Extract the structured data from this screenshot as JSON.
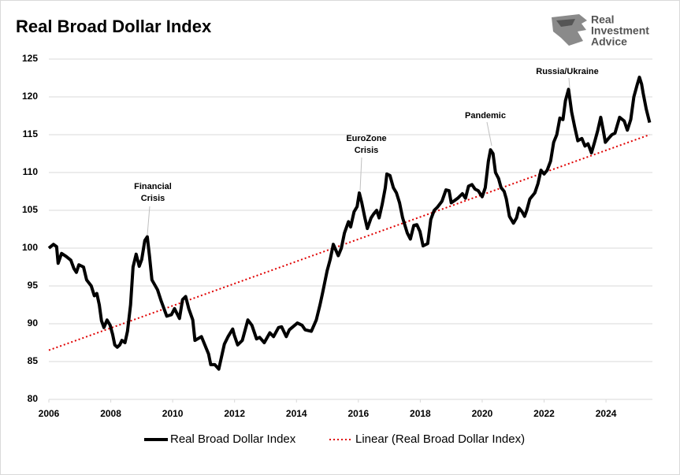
{
  "chart_data": {
    "type": "line",
    "title": "Real Broad Dollar Index",
    "logo": [
      "Real",
      "Investment",
      "Advice"
    ],
    "annotations": [
      {
        "lines": [
          "Financial",
          "Crisis"
        ]
      },
      {
        "lines": [
          "EuroZone",
          "Crisis"
        ]
      },
      {
        "lines": [
          "Pandemic"
        ]
      },
      {
        "lines": [
          "Russia/Ukraine"
        ]
      }
    ],
    "xlim": [
      2006,
      2025.5
    ],
    "xticks": [
      2006,
      2008,
      2010,
      2012,
      2014,
      2016,
      2018,
      2020,
      2022,
      2024
    ],
    "ylim": [
      80,
      125
    ],
    "yticks": [
      80,
      85,
      90,
      95,
      100,
      105,
      110,
      115,
      120,
      125
    ],
    "grid": true,
    "legend": "bottom",
    "series": [
      {
        "name": "Real Broad Dollar Index",
        "color": "#000000",
        "style": "solid",
        "x": [
          2006.0,
          2006.15,
          2006.25,
          2006.3,
          2006.41,
          2006.56,
          2006.71,
          2006.81,
          2006.89,
          2006.97,
          2007.12,
          2007.22,
          2007.37,
          2007.47,
          2007.55,
          2007.63,
          2007.7,
          2007.78,
          2007.88,
          2007.98,
          2008.06,
          2008.13,
          2008.21,
          2008.29,
          2008.36,
          2008.46,
          2008.54,
          2008.64,
          2008.72,
          2008.82,
          2008.92,
          2009.0,
          2009.1,
          2009.18,
          2009.25,
          2009.33,
          2009.51,
          2009.63,
          2009.81,
          2009.96,
          2010.06,
          2010.22,
          2010.32,
          2010.42,
          2010.52,
          2010.65,
          2010.72,
          2010.93,
          2011.08,
          2011.16,
          2011.23,
          2011.36,
          2011.49,
          2011.67,
          2011.79,
          2011.94,
          2011.99,
          2012.1,
          2012.25,
          2012.43,
          2012.56,
          2012.71,
          2012.81,
          2012.96,
          2013.14,
          2013.26,
          2013.42,
          2013.52,
          2013.67,
          2013.77,
          2014.03,
          2014.18,
          2014.28,
          2014.48,
          2014.64,
          2014.76,
          2014.84,
          2014.99,
          2015.09,
          2015.19,
          2015.35,
          2015.45,
          2015.55,
          2015.68,
          2015.75,
          2015.86,
          2015.96,
          2016.03,
          2016.11,
          2016.21,
          2016.29,
          2016.41,
          2016.49,
          2016.59,
          2016.67,
          2016.77,
          2016.87,
          2016.92,
          2017.02,
          2017.13,
          2017.23,
          2017.33,
          2017.43,
          2017.58,
          2017.68,
          2017.79,
          2017.89,
          2017.99,
          2018.09,
          2018.24,
          2018.34,
          2018.45,
          2018.55,
          2018.7,
          2018.83,
          2018.93,
          2019.0,
          2019.11,
          2019.21,
          2019.36,
          2019.46,
          2019.56,
          2019.67,
          2019.77,
          2019.87,
          2020.0,
          2020.1,
          2020.2,
          2020.27,
          2020.35,
          2020.43,
          2020.53,
          2020.61,
          2020.71,
          2020.78,
          2020.88,
          2021.01,
          2021.11,
          2021.19,
          2021.29,
          2021.37,
          2021.44,
          2021.54,
          2021.7,
          2021.8,
          2021.9,
          2022.0,
          2022.1,
          2022.21,
          2022.31,
          2022.41,
          2022.51,
          2022.61,
          2022.69,
          2022.79,
          2022.89,
          2022.99,
          2023.09,
          2023.22,
          2023.32,
          2023.42,
          2023.53,
          2023.63,
          2023.73,
          2023.83,
          2023.91,
          2023.98,
          2024.08,
          2024.19,
          2024.29,
          2024.44,
          2024.59,
          2024.69,
          2024.8,
          2024.9,
          2025.0,
          2025.08,
          2025.15,
          2025.2,
          2025.3,
          2025.41
        ],
        "values": [
          100,
          100.5,
          100.2,
          98,
          99.3,
          98.9,
          98.4,
          97.3,
          96.8,
          97.8,
          97.5,
          95.8,
          95,
          93.7,
          94,
          92.5,
          90.4,
          89.5,
          90.5,
          89.8,
          88.6,
          87.2,
          86.9,
          87.2,
          87.8,
          87.5,
          89,
          92.5,
          97.5,
          99.2,
          97.6,
          98.5,
          101,
          101.5,
          99,
          95.8,
          94.5,
          93,
          91,
          91.2,
          92,
          90.7,
          93.2,
          93.6,
          92,
          90.5,
          87.8,
          88.3,
          86.8,
          86,
          84.6,
          84.6,
          84,
          87.3,
          88.3,
          89.3,
          88.5,
          87.2,
          87.8,
          90.5,
          89.8,
          88,
          88.2,
          87.5,
          88.8,
          88.3,
          89.5,
          89.6,
          88.3,
          89.2,
          90.1,
          89.8,
          89.2,
          89,
          90.5,
          92.5,
          94,
          97,
          98.5,
          100.5,
          99,
          100,
          102,
          103.5,
          102.8,
          104.8,
          105.5,
          107.3,
          106,
          104,
          102.6,
          104,
          104.5,
          105,
          104,
          105.8,
          108,
          109.8,
          109.6,
          108,
          107.3,
          106,
          104,
          102,
          101.2,
          103,
          103.1,
          102.2,
          100.3,
          100.6,
          103.8,
          105,
          105.4,
          106.2,
          107.7,
          107.6,
          106,
          106.3,
          106.6,
          107.2,
          106.6,
          108.2,
          108.4,
          107.8,
          107.6,
          106.8,
          108,
          111.5,
          113,
          112.5,
          110,
          109.2,
          108,
          107.5,
          106.5,
          104.2,
          103.3,
          104,
          105.3,
          104.8,
          104.2,
          105,
          106.5,
          107.3,
          108.5,
          110.3,
          109.8,
          110.3,
          111.5,
          114,
          115,
          117.2,
          117,
          119.5,
          121,
          118,
          116,
          114.2,
          114.5,
          113.5,
          113.8,
          112.6,
          114,
          115.5,
          117.3,
          115.6,
          114,
          114.5,
          115,
          115.2,
          117.3,
          116.8,
          115.6,
          117,
          120,
          121.5,
          122.6,
          121.7,
          120.5,
          118.4,
          116.6
        ]
      },
      {
        "name": "Linear (Real Broad Dollar Index)",
        "color": "#e00000",
        "style": "dotted",
        "x": [
          2006,
          2025.41
        ],
        "values": [
          86.5,
          115
        ]
      }
    ]
  }
}
